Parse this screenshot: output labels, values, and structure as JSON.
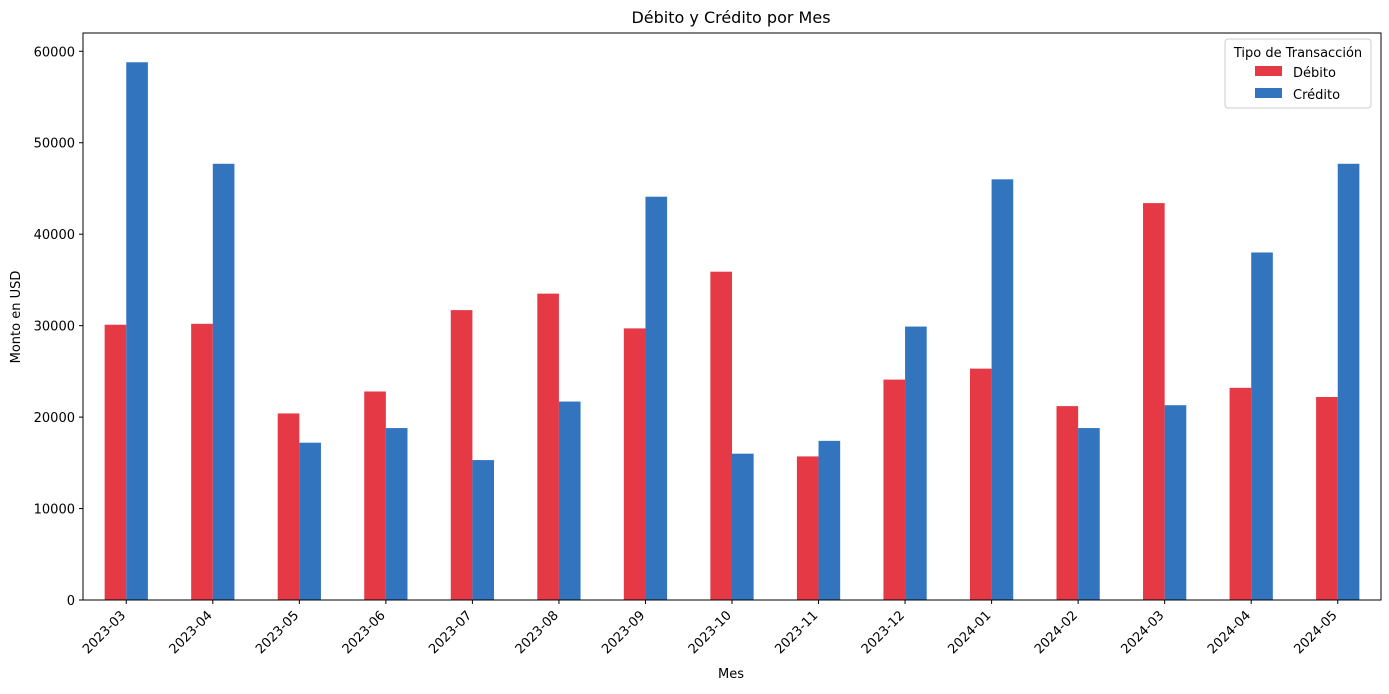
{
  "chart_data": {
    "type": "bar",
    "title": "Débito y Crédito por Mes",
    "xlabel": "Mes",
    "ylabel": "Monto en USD",
    "ylim": [
      0,
      62000
    ],
    "yticks": [
      0,
      10000,
      20000,
      30000,
      40000,
      50000,
      60000
    ],
    "grid": false,
    "legend": {
      "title": "Tipo de Transacción",
      "position": "top-right"
    },
    "categories": [
      "2023-03",
      "2023-04",
      "2023-05",
      "2023-06",
      "2023-07",
      "2023-08",
      "2023-09",
      "2023-10",
      "2023-11",
      "2023-12",
      "2024-01",
      "2024-02",
      "2024-03",
      "2024-04",
      "2024-05"
    ],
    "series": [
      {
        "name": "Débito",
        "color": "#e63946",
        "values": [
          30100,
          30200,
          20400,
          22800,
          31700,
          33500,
          29700,
          35900,
          15700,
          24100,
          25300,
          21200,
          43400,
          23200,
          22200
        ]
      },
      {
        "name": "Crédito",
        "color": "#3274be",
        "values": [
          58800,
          47700,
          17200,
          18800,
          15300,
          21700,
          44100,
          16000,
          17400,
          29900,
          46000,
          18800,
          21300,
          38000,
          47700
        ]
      }
    ]
  }
}
